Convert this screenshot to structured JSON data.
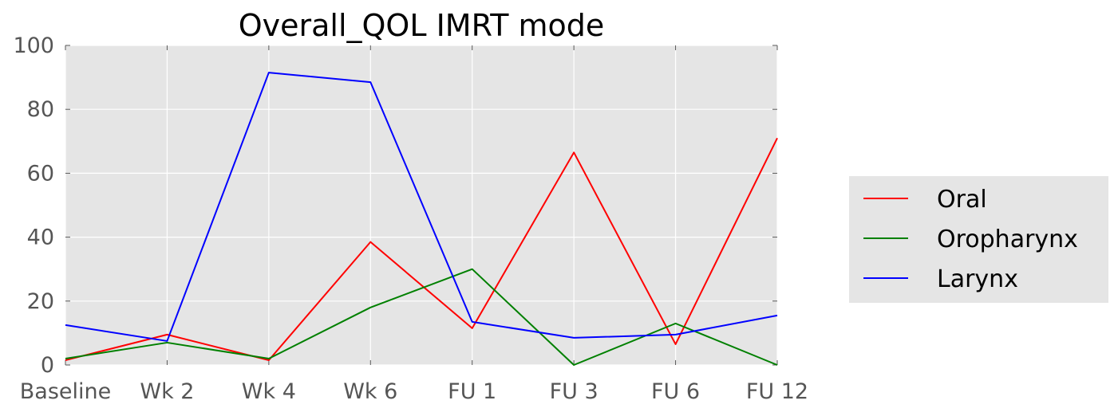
{
  "chart_data": {
    "type": "line",
    "title": "Overall_QOL IMRT  mode",
    "xlabel": "",
    "ylabel": "",
    "categories": [
      "Baseline",
      "Wk 2",
      "Wk 4",
      "Wk 6",
      "FU 1",
      "FU 3",
      "FU 6",
      "FU 12"
    ],
    "yticks": [
      0,
      20,
      40,
      60,
      80,
      100
    ],
    "ylim": [
      0,
      100
    ],
    "grid": true,
    "legend_position": "right",
    "colors": {
      "plot_background": "#e5e5e5",
      "grid": "#ffffff"
    },
    "series": [
      {
        "name": "Oral",
        "color": "#ff0000",
        "values": [
          1.5,
          9.5,
          1.5,
          38.5,
          11.5,
          66.5,
          6.5,
          71
        ]
      },
      {
        "name": "Oropharynx",
        "color": "#008000",
        "values": [
          2,
          7,
          2,
          18,
          30,
          0,
          13,
          0
        ]
      },
      {
        "name": "Larynx",
        "color": "#0000ff",
        "values": [
          12.5,
          7.5,
          91.5,
          88.5,
          13.5,
          8.5,
          9.5,
          15.5
        ]
      }
    ]
  }
}
